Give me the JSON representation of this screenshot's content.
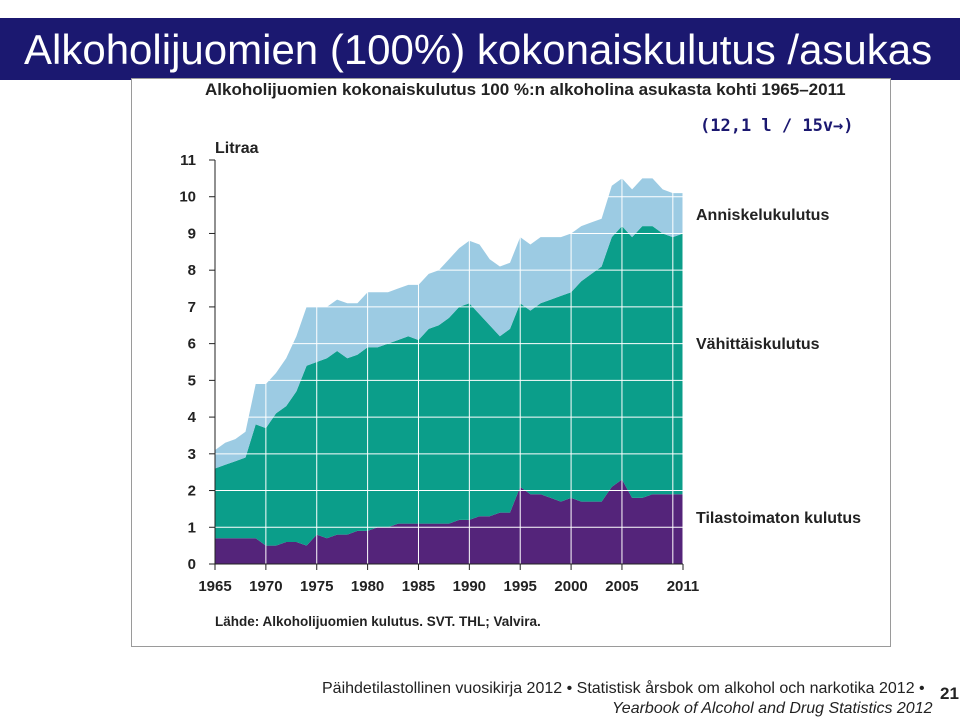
{
  "slide": {
    "title": "Alkoholijuomien (100%) kokonaiskulutus /asukas",
    "note": "(12,1 l / 15v→)",
    "footer_line1": "Päihdetilastollinen vuosikirja 2012 • Statistisk årsbok om alkohol och narkotika 2012 •",
    "footer_line2": "Yearbook of Alcohol and Drug Statistics 2012",
    "page_number": "21"
  },
  "chart_data": {
    "type": "area",
    "stacked": true,
    "title": "Alkoholijuomien kokonaiskulutus 100 %:n alkoholina asukasta kohti 1965–2011",
    "ylabel": "Litraa",
    "xlabel": "",
    "source": "Lähde: Alkoholijuomien kulutus. SVT. THL; Valvira.",
    "xlim": [
      1965,
      2011
    ],
    "ylim": [
      0,
      11
    ],
    "grid": true,
    "x_ticks": [
      1965,
      1970,
      1975,
      1980,
      1985,
      1990,
      1995,
      2000,
      2005,
      2011
    ],
    "y_ticks": [
      0,
      1,
      2,
      3,
      4,
      5,
      6,
      7,
      8,
      9,
      10,
      11
    ],
    "x": [
      1965,
      1966,
      1967,
      1968,
      1969,
      1970,
      1971,
      1972,
      1973,
      1974,
      1975,
      1976,
      1977,
      1978,
      1979,
      1980,
      1981,
      1982,
      1983,
      1984,
      1985,
      1986,
      1987,
      1988,
      1989,
      1990,
      1991,
      1992,
      1993,
      1994,
      1995,
      1996,
      1997,
      1998,
      1999,
      2000,
      2001,
      2002,
      2003,
      2004,
      2005,
      2006,
      2007,
      2008,
      2009,
      2010,
      2011
    ],
    "series": [
      {
        "name": "Tilastoimaton kulutus",
        "color": "#54247a",
        "values": [
          0.7,
          0.7,
          0.7,
          0.7,
          0.7,
          0.5,
          0.5,
          0.6,
          0.6,
          0.5,
          0.8,
          0.7,
          0.8,
          0.8,
          0.9,
          0.9,
          1.0,
          1.0,
          1.1,
          1.1,
          1.1,
          1.1,
          1.1,
          1.1,
          1.2,
          1.2,
          1.3,
          1.3,
          1.4,
          1.4,
          2.1,
          1.9,
          1.9,
          1.8,
          1.7,
          1.8,
          1.7,
          1.7,
          1.7,
          2.1,
          2.3,
          1.8,
          1.8,
          1.9,
          1.9,
          1.9,
          1.9
        ]
      },
      {
        "name": "Vähittäiskulutus",
        "color": "#0b9e8a",
        "values": [
          1.9,
          2.0,
          2.1,
          2.2,
          3.1,
          3.2,
          3.6,
          3.7,
          4.1,
          4.9,
          4.7,
          4.9,
          5.0,
          4.8,
          4.8,
          5.0,
          4.9,
          5.0,
          5.0,
          5.1,
          5.0,
          5.3,
          5.4,
          5.6,
          5.8,
          5.9,
          5.5,
          5.2,
          4.8,
          5.0,
          5.0,
          5.0,
          5.2,
          5.4,
          5.6,
          5.6,
          6.0,
          6.2,
          6.4,
          6.8,
          6.9,
          7.1,
          7.4,
          7.3,
          7.1,
          7.0,
          7.1
        ]
      },
      {
        "name": "Anniskelukulutus",
        "color": "#9ccbe3",
        "values": [
          0.5,
          0.6,
          0.6,
          0.7,
          1.1,
          1.2,
          1.1,
          1.3,
          1.5,
          1.6,
          1.5,
          1.4,
          1.4,
          1.5,
          1.4,
          1.5,
          1.5,
          1.4,
          1.4,
          1.4,
          1.5,
          1.5,
          1.5,
          1.6,
          1.6,
          1.7,
          1.9,
          1.8,
          1.9,
          1.8,
          1.8,
          1.8,
          1.8,
          1.7,
          1.6,
          1.6,
          1.5,
          1.4,
          1.3,
          1.4,
          1.3,
          1.3,
          1.3,
          1.3,
          1.2,
          1.2,
          1.1
        ]
      }
    ]
  }
}
